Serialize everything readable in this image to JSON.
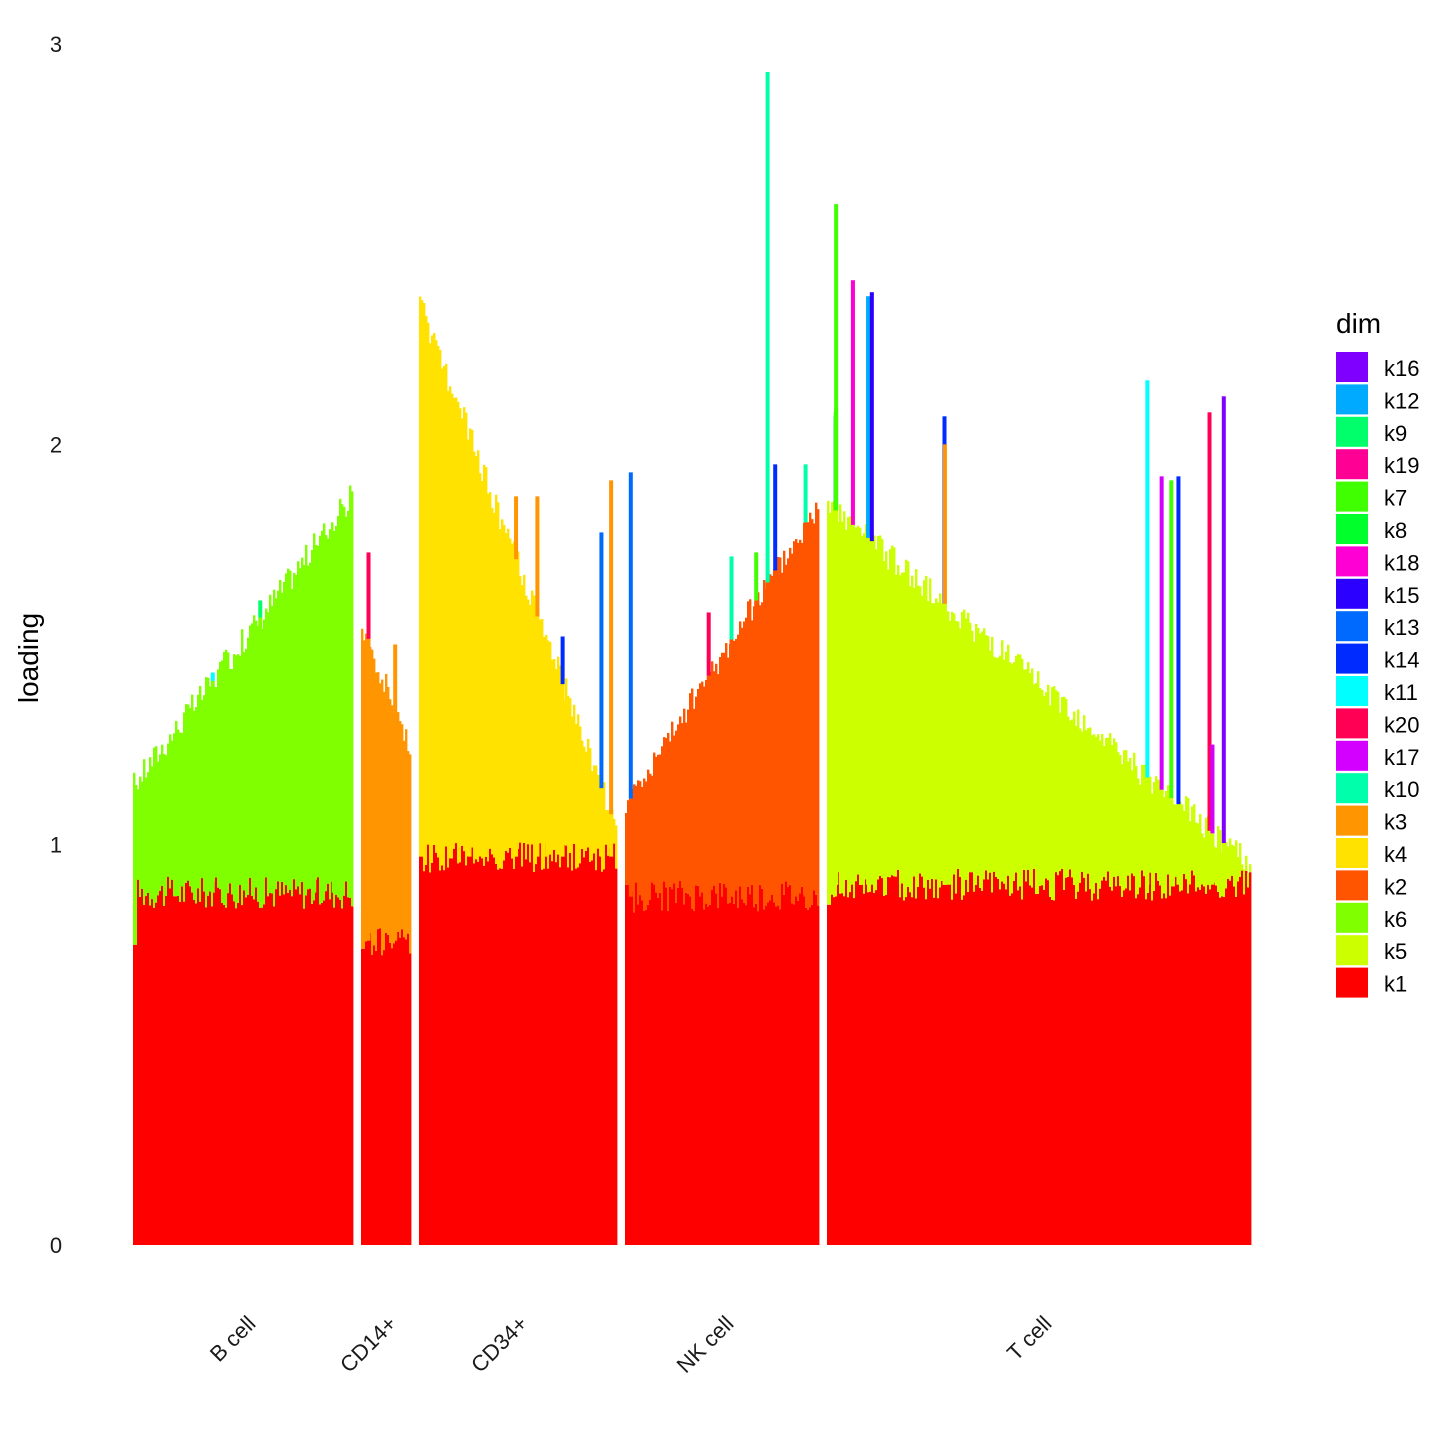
{
  "chart_data": {
    "type": "bar",
    "stacked": true,
    "ylabel": "loading",
    "xlabel": "",
    "ylim": [
      0,
      3
    ],
    "yticks": [
      0,
      1,
      2,
      3
    ],
    "grid": false,
    "legend": {
      "title": "dim",
      "position": "right",
      "entries": [
        {
          "key": "k16",
          "color": "#8000FF"
        },
        {
          "key": "k12",
          "color": "#00AAFF"
        },
        {
          "key": "k9",
          "color": "#00FF6A"
        },
        {
          "key": "k19",
          "color": "#FF0095"
        },
        {
          "key": "k7",
          "color": "#40FF00"
        },
        {
          "key": "k8",
          "color": "#00FF2B"
        },
        {
          "key": "k18",
          "color": "#FF00D4"
        },
        {
          "key": "k15",
          "color": "#2B00FF"
        },
        {
          "key": "k13",
          "color": "#006AFF"
        },
        {
          "key": "k14",
          "color": "#002BFF"
        },
        {
          "key": "k11",
          "color": "#00FFFF"
        },
        {
          "key": "k20",
          "color": "#FF0055"
        },
        {
          "key": "k17",
          "color": "#D400FF"
        },
        {
          "key": "k10",
          "color": "#00FFAA"
        },
        {
          "key": "k3",
          "color": "#FF9500"
        },
        {
          "key": "k4",
          "color": "#FFE200"
        },
        {
          "key": "k2",
          "color": "#FF5500"
        },
        {
          "key": "k6",
          "color": "#80FF00"
        },
        {
          "key": "k5",
          "color": "#CCFF00"
        },
        {
          "key": "k1",
          "color": "#FF0000"
        }
      ]
    },
    "groups": [
      {
        "name": "B cell",
        "base_start": 0.75,
        "base_end": 0.92,
        "base_mean": 0.88,
        "second": "k6",
        "total_start": 1.15,
        "total_end": 1.87,
        "spikes": [
          {
            "at": 0.58,
            "total": 1.61,
            "dim": "k9"
          },
          {
            "at": 0.62,
            "total": 1.55,
            "dim": "k11"
          },
          {
            "at": 0.83,
            "total": 1.62,
            "dim": "k13"
          },
          {
            "at": 0.92,
            "total": 1.68,
            "dim": "k13"
          },
          {
            "at": 0.36,
            "total": 1.43,
            "dim": "k11"
          }
        ]
      },
      {
        "name": "CD14+",
        "base_start": 0.74,
        "base_end": 0.75,
        "base_mean": 0.76,
        "second": "k3",
        "total_start": 1.55,
        "total_end": 1.25,
        "spikes": [
          {
            "at": 0.12,
            "total": 1.73,
            "dim": "k20"
          },
          {
            "at": 0.7,
            "total": 1.5,
            "dim": "k3"
          }
        ]
      },
      {
        "name": "CD34+",
        "base_start": 1.02,
        "base_end": 0.88,
        "base_mean": 0.97,
        "second": "k4",
        "total_start": 2.35,
        "total_end": 1.05,
        "spikes": [
          {
            "at": 0.0,
            "total": 2.35,
            "dim": "k12"
          },
          {
            "at": 0.49,
            "total": 1.87,
            "dim": "k3"
          },
          {
            "at": 0.6,
            "total": 1.87,
            "dim": "k3"
          },
          {
            "at": 0.73,
            "total": 1.52,
            "dim": "k14"
          },
          {
            "at": 0.93,
            "total": 1.78,
            "dim": "k13"
          },
          {
            "at": 0.98,
            "total": 1.91,
            "dim": "k3"
          },
          {
            "at": 0.25,
            "total": 1.8,
            "dim": "k20"
          },
          {
            "at": 0.65,
            "total": 1.47,
            "dim": "k17"
          }
        ]
      },
      {
        "name": "NK cell",
        "base_start": 0.9,
        "base_end": 0.82,
        "base_mean": 0.87,
        "second": "k2",
        "total_start": 1.1,
        "total_end": 1.85,
        "spikes": [
          {
            "at": 0.02,
            "total": 1.93,
            "dim": "k13"
          },
          {
            "at": 0.74,
            "total": 2.93,
            "dim": "k10"
          },
          {
            "at": 0.78,
            "total": 1.95,
            "dim": "k14"
          },
          {
            "at": 0.94,
            "total": 1.95,
            "dim": "k10"
          },
          {
            "at": 0.55,
            "total": 1.72,
            "dim": "k10"
          },
          {
            "at": 0.43,
            "total": 1.58,
            "dim": "k20"
          },
          {
            "at": 0.68,
            "total": 1.73,
            "dim": "k7"
          }
        ]
      },
      {
        "name": "T cell",
        "base_start": 0.85,
        "base_end": 0.8,
        "base_mean": 0.9,
        "second": "k5",
        "total_start": 1.85,
        "total_end": 0.95,
        "spikes": [
          {
            "at": 0.016,
            "total": 2.07,
            "dim": "k14"
          },
          {
            "at": 0.016,
            "total": 2.08,
            "dim": "k7"
          },
          {
            "at": 0.017,
            "total": 2.09,
            "dim": "k7"
          },
          {
            "at": 0.017,
            "total": 2.6,
            "dim": "k7"
          },
          {
            "at": 0.057,
            "total": 2.41,
            "dim": "k18"
          },
          {
            "at": 0.093,
            "total": 2.37,
            "dim": "k12"
          },
          {
            "at": 0.102,
            "total": 2.38,
            "dim": "k15"
          },
          {
            "at": 0.275,
            "total": 2.07,
            "dim": "k14"
          },
          {
            "at": 0.281,
            "total": 1.42,
            "dim": "k7"
          },
          {
            "at": 0.275,
            "total": 1.46,
            "dim": "k13"
          },
          {
            "at": 0.276,
            "total": 1.25,
            "dim": "k19"
          },
          {
            "at": 0.276,
            "total": 2.0,
            "dim": "k3"
          },
          {
            "at": 0.277,
            "total": 1.3,
            "dim": "k3"
          },
          {
            "at": 0.758,
            "total": 2.16,
            "dim": "k11"
          },
          {
            "at": 0.792,
            "total": 1.92,
            "dim": "k17"
          },
          {
            "at": 0.815,
            "total": 1.91,
            "dim": "k7"
          },
          {
            "at": 0.832,
            "total": 1.92,
            "dim": "k14"
          },
          {
            "at": 0.906,
            "total": 2.08,
            "dim": "k20"
          },
          {
            "at": 0.94,
            "total": 2.12,
            "dim": "k16"
          },
          {
            "at": 0.913,
            "total": 1.25,
            "dim": "k17"
          },
          {
            "at": 0.29,
            "total": 1.22,
            "dim": "k2"
          }
        ]
      }
    ]
  }
}
